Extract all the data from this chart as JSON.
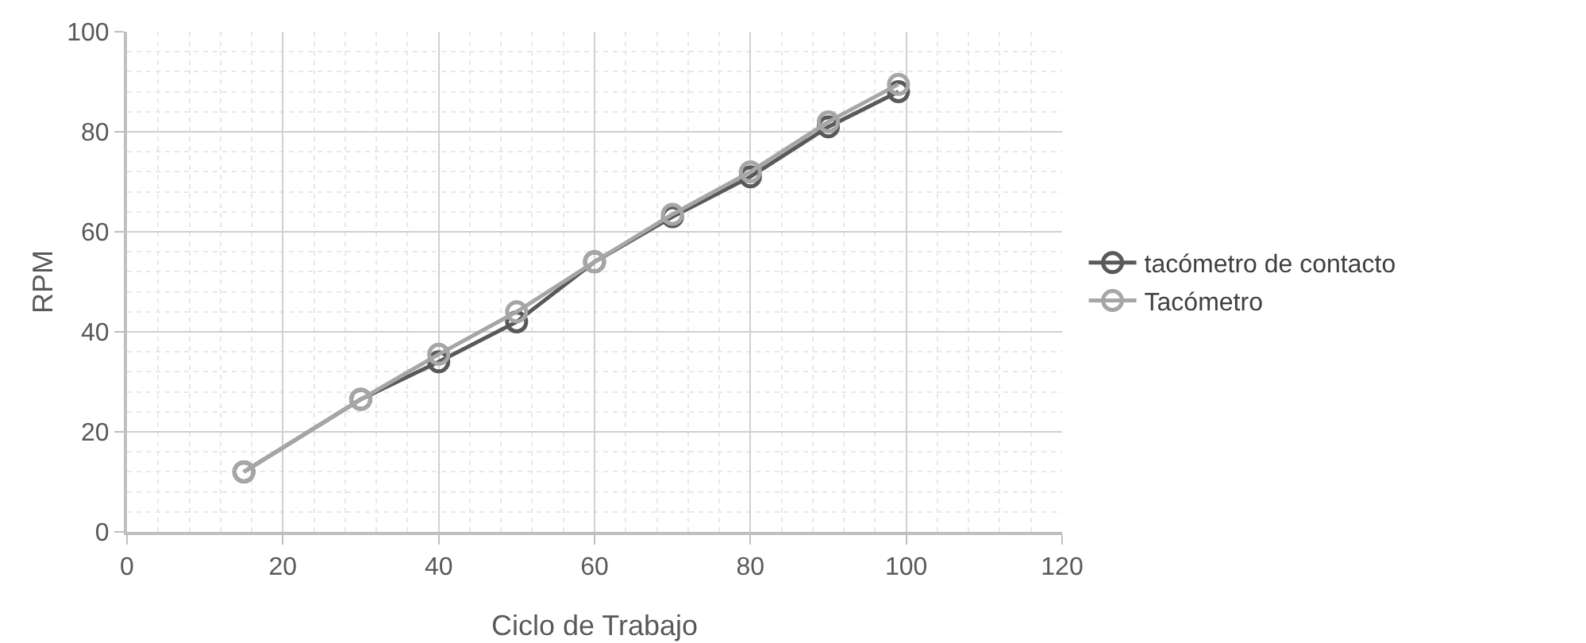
{
  "chart_data": {
    "type": "line",
    "xlabel": "Ciclo de Trabajo",
    "ylabel": "RPM",
    "x": [
      15,
      30,
      40,
      50,
      60,
      70,
      80,
      90,
      99
    ],
    "series": [
      {
        "name": "tacómetro de contacto",
        "color": "#595959",
        "values": [
          12,
          26.5,
          34,
          42,
          54,
          63,
          71,
          81,
          88
        ]
      },
      {
        "name": "Tacómetro",
        "color": "#a6a6a6",
        "values": [
          12,
          26.5,
          35.5,
          44,
          54,
          63.5,
          72,
          82,
          89.5
        ]
      }
    ],
    "xlim": [
      0,
      120
    ],
    "xticks": [
      0,
      20,
      40,
      60,
      80,
      100,
      120
    ],
    "ylim": [
      0,
      100
    ],
    "yticks": [
      0,
      20,
      40,
      60,
      80,
      100
    ],
    "grid": true,
    "legend": "right",
    "marker": "circle",
    "line_style": "solid"
  }
}
